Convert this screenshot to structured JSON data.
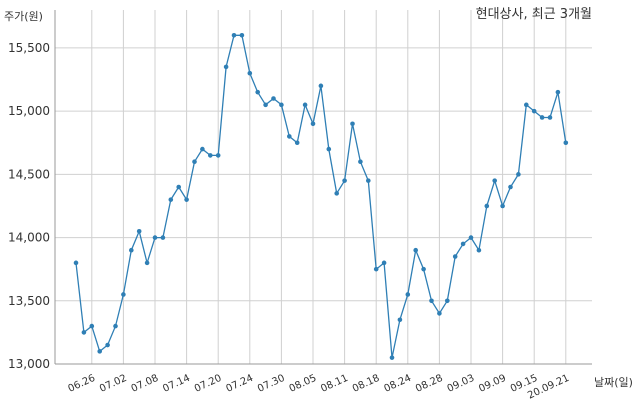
{
  "chart_data": {
    "type": "line",
    "title": "현대상사, 최근 3개월",
    "ylabel": "주가(원)",
    "xlabel": "날짜(일)",
    "ylim": [
      13000,
      15800
    ],
    "yticks": [
      13000,
      13500,
      14000,
      14500,
      15000,
      15500
    ],
    "ytick_labels": [
      "13,000",
      "13,500",
      "14,000",
      "14,500",
      "15,000",
      "15,500"
    ],
    "xtick_labels": [
      "06.26",
      "07.02",
      "07.08",
      "07.14",
      "07.20",
      "07.24",
      "07.30",
      "08.05",
      "08.11",
      "08.18",
      "08.24",
      "08.28",
      "09.03",
      "09.09",
      "09.15",
      "20.09.21"
    ],
    "xtick_index": [
      2,
      6,
      10,
      14,
      18,
      22,
      26,
      30,
      34,
      38,
      42,
      46,
      50,
      54,
      58,
      62
    ],
    "grid": true,
    "line_color": "#2f7fb5",
    "series": [
      {
        "values": [
          13800,
          13250,
          13300,
          13100,
          13150,
          13300,
          13550,
          13900,
          14050,
          13800,
          14000,
          14000,
          14300,
          14400,
          14300,
          14600,
          14700,
          14650,
          14650,
          15350,
          15600,
          15600,
          15300,
          15150,
          15050,
          15100,
          15050,
          14800,
          14750,
          15050,
          14900,
          15200,
          14700,
          14350,
          14450,
          14900,
          14600,
          14450,
          13750,
          13800,
          13050,
          13350,
          13550,
          13900,
          13750,
          13500,
          13400,
          13500,
          13850,
          13950,
          14000,
          13900,
          14250,
          14450,
          14250,
          14400,
          14500,
          15050,
          15000,
          14950,
          14950,
          15150,
          14750
        ]
      }
    ]
  }
}
